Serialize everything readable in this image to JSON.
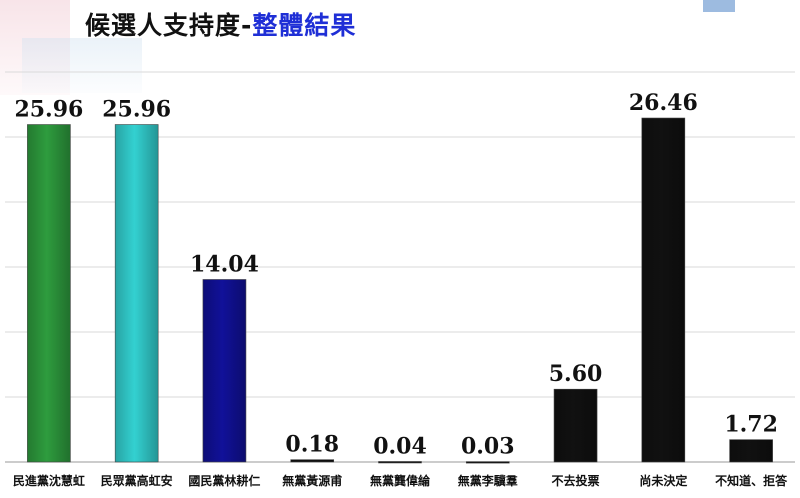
{
  "title": {
    "main": "候選人支持度-",
    "accent": "整體結果",
    "main_color": "#111111",
    "accent_color": "#1f2fd6"
  },
  "chart_data": {
    "type": "bar",
    "title": "候選人支持度-整體結果",
    "categories": [
      "民進黨沈慧虹",
      "民眾黨高虹安",
      "國民黨林耕仁",
      "無黨黃源甫",
      "無黨龔偉綸",
      "無黨李驥羣",
      "不去投票",
      "尚未決定",
      "不知道、拒答"
    ],
    "values": [
      25.96,
      25.96,
      14.04,
      0.18,
      0.04,
      0.03,
      5.6,
      26.46,
      1.72
    ],
    "value_labels": [
      "25.96",
      "25.96",
      "14.04",
      "0.18",
      "0.04",
      "0.03",
      "5.60",
      "26.46",
      "1.72"
    ],
    "colors": [
      "#2e9c3e",
      "#33d1d1",
      "#111199",
      "#111111",
      "#111111",
      "#111111",
      "#111111",
      "#111111",
      "#111111"
    ],
    "ylim": [
      0,
      30
    ],
    "grid": true,
    "xlabel": "",
    "ylabel": ""
  }
}
